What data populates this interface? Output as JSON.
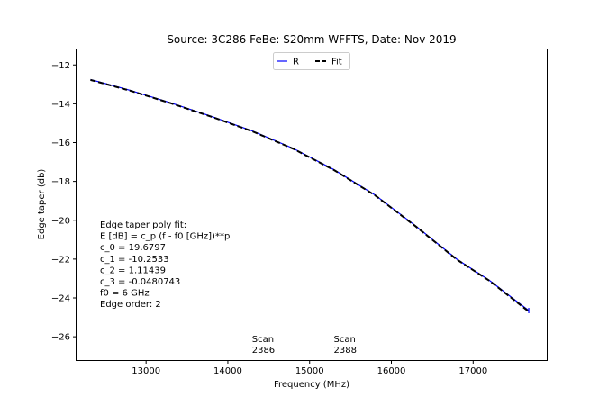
{
  "chart_data": {
    "type": "line",
    "title": "Source: 3C286 FeBe: S20mm-WFFTS, Date: Nov 2019",
    "xlabel": "Frequency (MHz)",
    "ylabel": "Edge taper (db)",
    "xlim": [
      12150,
      17900
    ],
    "ylim": [
      -27.2,
      -11.2
    ],
    "xticks": [
      13000,
      14000,
      15000,
      16000,
      17000
    ],
    "yticks": [
      -12,
      -14,
      -16,
      -18,
      -20,
      -22,
      -24,
      -26
    ],
    "grid": false,
    "legend_position": "top-center",
    "series": [
      {
        "name": "R",
        "color": "#0000ff",
        "style": "solid",
        "x": [
          12320,
          12800,
          13300,
          13800,
          14300,
          14800,
          15300,
          15800,
          16300,
          16800,
          17200,
          17680
        ],
        "y": [
          -12.75,
          -13.3,
          -13.95,
          -14.65,
          -15.4,
          -16.3,
          -17.4,
          -18.7,
          -20.3,
          -22.0,
          -23.1,
          -24.65
        ]
      },
      {
        "name": "Fit",
        "color": "#000000",
        "style": "dashed",
        "x": [
          12320,
          12800,
          13300,
          13800,
          14300,
          14800,
          15300,
          15800,
          16300,
          16800,
          17200,
          17680
        ],
        "y": [
          -12.77,
          -13.32,
          -13.97,
          -14.67,
          -15.42,
          -16.32,
          -17.42,
          -18.72,
          -20.32,
          -22.02,
          -23.12,
          -24.7
        ]
      }
    ],
    "fit_text": [
      "Edge taper poly fit:",
      "E [dB] = c_p (f - f0 [GHz])**p",
      "c_0 = 19.6797",
      "c_1 = -10.2533",
      "c_2 = 1.11439",
      "c_3 = -0.0480743",
      "f0 = 6 GHz",
      "Edge order: 2"
    ],
    "scan_labels": [
      {
        "x": 14350,
        "lines": [
          "Scan",
          "2386"
        ]
      },
      {
        "x": 15350,
        "lines": [
          "Scan",
          "2388"
        ]
      }
    ]
  }
}
